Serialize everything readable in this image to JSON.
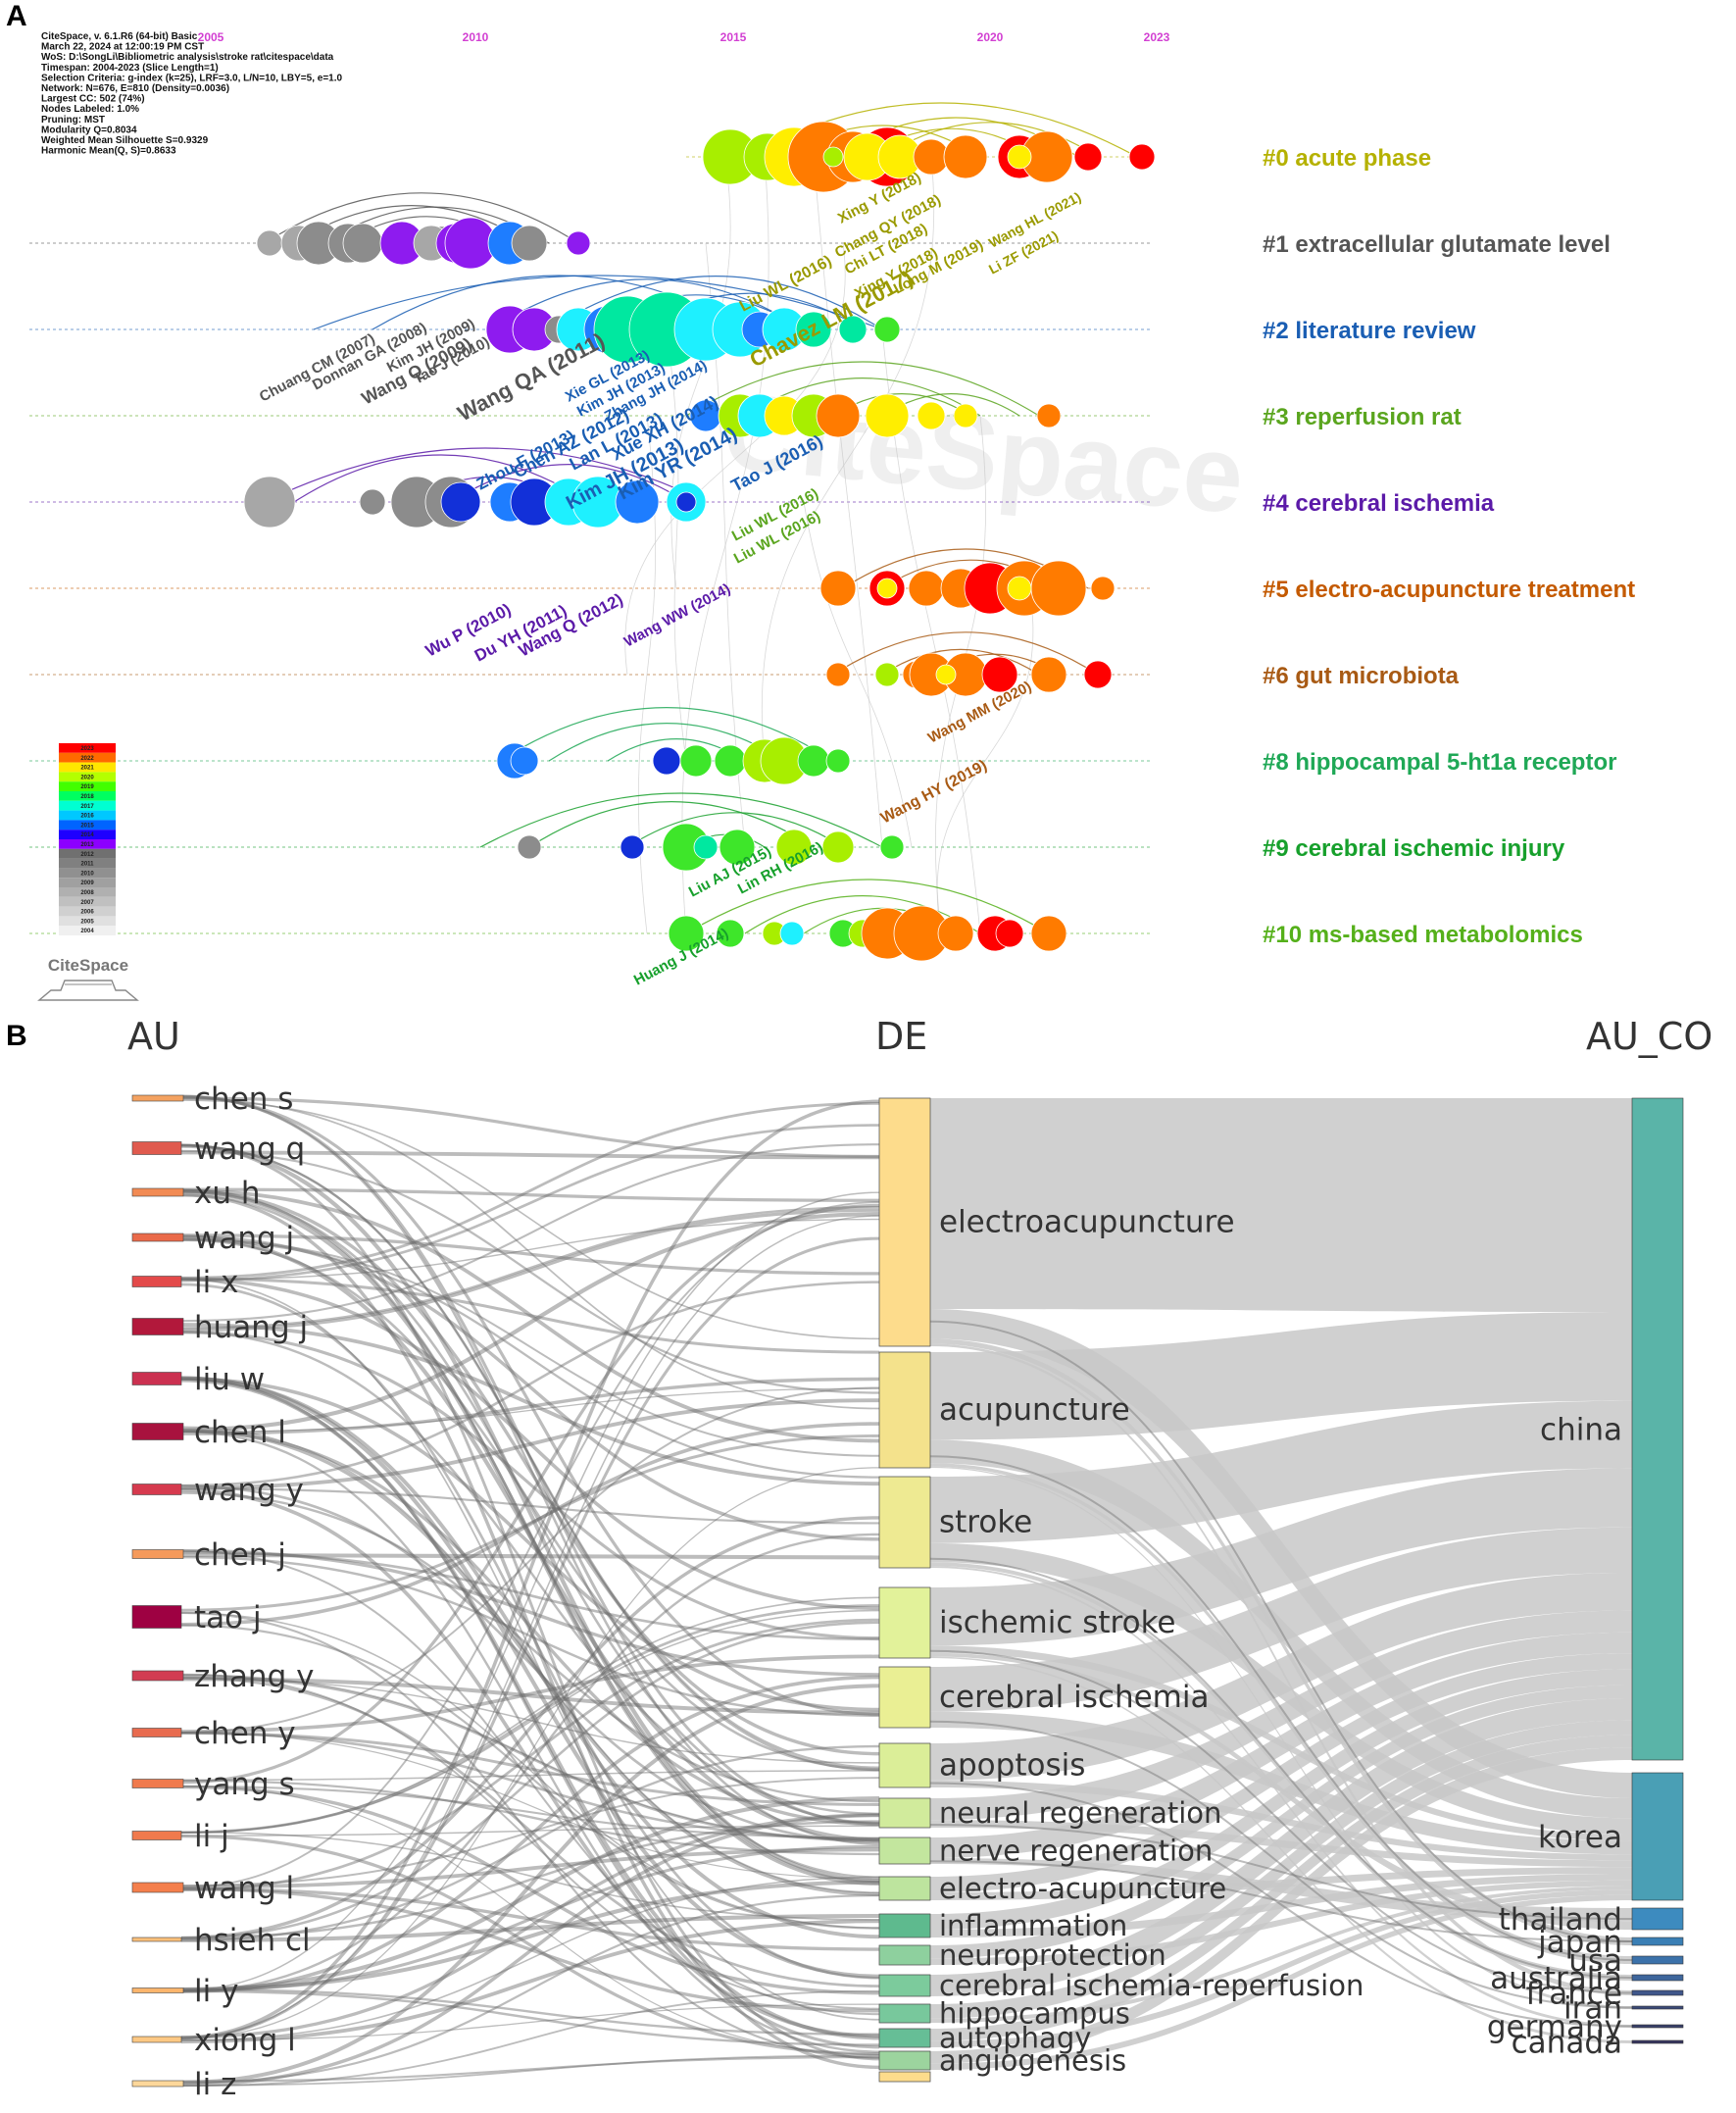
{
  "panels": {
    "a": "A",
    "b": "B"
  },
  "citespace": {
    "meta": [
      "CiteSpace, v. 6.1.R6 (64-bit) Basic",
      "March 22, 2024 at 12:00:19 PM CST",
      "WoS: D:\\SongLi\\Bibliometric analysis\\stroke rat\\citespace\\data",
      "Timespan: 2004-2023 (Slice Length=1)",
      "Selection Criteria: g-index (k=25), LRF=3.0, L/N=10, LBY=5, e=1.0",
      "Network: N=676, E=810 (Density=0.0036)",
      "Largest CC: 502 (74%)",
      "Nodes Labeled: 1.0%",
      "Pruning: MST",
      "Modularity Q=0.8034",
      "Weighted Mean Silhouette S=0.9329",
      "Harmonic Mean(Q, S)=0.8633"
    ],
    "years": [
      "2005",
      "2010",
      "2015",
      "2020",
      "2023"
    ],
    "watermark": "CiteSpace",
    "logo_text": "CiteSpace",
    "legend_years": [
      "2023",
      "2022",
      "2021",
      "2020",
      "2019",
      "2018",
      "2017",
      "2016",
      "2015",
      "2014",
      "2013",
      "2012",
      "2011",
      "2010",
      "2009",
      "2008",
      "2007",
      "2006",
      "2005",
      "2004"
    ],
    "legend_colors": [
      "#ff0000",
      "#ff6a00",
      "#ffe600",
      "#b4ff00",
      "#42ff00",
      "#00ff60",
      "#00ffd2",
      "#00c8ff",
      "#0064ff",
      "#1e00ff",
      "#8c00ff",
      "#707070",
      "#808080",
      "#909090",
      "#a0a0a0",
      "#b0b0b0",
      "#c0c0c0",
      "#d0d0d0",
      "#e0e0e0",
      "#f0f0f0"
    ],
    "clusters": [
      {
        "label": "#0 acute phase",
        "color": "#b5b100"
      },
      {
        "label": "#1 extracellular glutamate level",
        "color": "#555555"
      },
      {
        "label": "#2 literature review",
        "color": "#1a5eb3"
      },
      {
        "label": "#3 reperfusion rat",
        "color": "#5aa51e"
      },
      {
        "label": "#4 cerebral ischemia",
        "color": "#5b1aa8"
      },
      {
        "label": "#5 electro-acupuncture treatment",
        "color": "#c45a00"
      },
      {
        "label": "#6 gut microbiota",
        "color": "#a85a14"
      },
      {
        "label": "#8 hippocampal 5-ht1a receptor",
        "color": "#1fa856"
      },
      {
        "label": "#9 cerebral ischemic injury",
        "color": "#17a02c"
      },
      {
        "label": "#10 ms-based metabolomics",
        "color": "#55b01a"
      }
    ],
    "authors": [
      {
        "text": "Xing Y (2018)",
        "color": "#9a9a00"
      },
      {
        "text": "Chang QY (2018)",
        "color": "#9a9a00"
      },
      {
        "text": "Chi LT (2018)",
        "color": "#9a9a00"
      },
      {
        "text": "Xing Y (2018)",
        "color": "#9a9a00"
      },
      {
        "text": "Long M (2019)",
        "color": "#9a9a00"
      },
      {
        "text": "Liu WL (2016)",
        "color": "#9a9a00"
      },
      {
        "text": "Chavez LM (2017)",
        "color": "#9a9a00"
      },
      {
        "text": "Wang HL (2021)",
        "color": "#9a9a00"
      },
      {
        "text": "Li ZF (2021)",
        "color": "#9a9a00"
      },
      {
        "text": "Chuang CM (2007)",
        "color": "#555555"
      },
      {
        "text": "Donnan GA (2008)",
        "color": "#555555"
      },
      {
        "text": "Kim JH (2009)",
        "color": "#555555"
      },
      {
        "text": "Wang Q (2009)",
        "color": "#555555"
      },
      {
        "text": "Tao J (2010)",
        "color": "#555555"
      },
      {
        "text": "Wang QA (2011)",
        "color": "#555555"
      },
      {
        "text": "Xie GL (2013)",
        "color": "#1a5eb3"
      },
      {
        "text": "Kim JH (2013)",
        "color": "#1a5eb3"
      },
      {
        "text": "Zhang JH (2014)",
        "color": "#1a5eb3"
      },
      {
        "text": "Zhou F (2013)",
        "color": "#1a5eb3"
      },
      {
        "text": "Chen AZ (2012)",
        "color": "#1a5eb3"
      },
      {
        "text": "Lan L (2013)",
        "color": "#1a5eb3"
      },
      {
        "text": "Xue XH (2014)",
        "color": "#1a5eb3"
      },
      {
        "text": "Kim JH (2013)",
        "color": "#1a5eb3"
      },
      {
        "text": "Kim YR (2014)",
        "color": "#1a5eb3"
      },
      {
        "text": "Tao J (2016)",
        "color": "#1a5eb3"
      },
      {
        "text": "Liu WL (2016)",
        "color": "#5aa51e"
      },
      {
        "text": "Liu WL (2016)",
        "color": "#5aa51e"
      },
      {
        "text": "Wu P (2010)",
        "color": "#5b1aa8"
      },
      {
        "text": "Du YH (2011)",
        "color": "#5b1aa8"
      },
      {
        "text": "Wang Q (2012)",
        "color": "#5b1aa8"
      },
      {
        "text": "Wang WW (2014)",
        "color": "#5b1aa8"
      },
      {
        "text": "Wang MM (2020)",
        "color": "#a85a14"
      },
      {
        "text": "Wang HY (2019)",
        "color": "#a85a14"
      },
      {
        "text": "Liu AJ (2015)",
        "color": "#17a02c"
      },
      {
        "text": "Lin RH (2016)",
        "color": "#17a02c"
      },
      {
        "text": "Huang J (2014)",
        "color": "#17a02c"
      }
    ]
  },
  "sankey": {
    "headers": {
      "au": "AU",
      "de": "DE",
      "au_co": "AU_CO"
    },
    "authors": [
      {
        "label": "chen s",
        "color": "#f4a261"
      },
      {
        "label": "wang q",
        "color": "#e05a4e"
      },
      {
        "label": "xu h",
        "color": "#f28b54"
      },
      {
        "label": "wang j",
        "color": "#ea6a4a"
      },
      {
        "label": "li x",
        "color": "#e34a4a"
      },
      {
        "label": "huang j",
        "color": "#b2183b"
      },
      {
        "label": "liu w",
        "color": "#cb3050"
      },
      {
        "label": "chen l",
        "color": "#a8123e"
      },
      {
        "label": "wang y",
        "color": "#d63a4e"
      },
      {
        "label": "chen j",
        "color": "#f59a5b"
      },
      {
        "label": "tao j",
        "color": "#9e0142"
      },
      {
        "label": "zhang y",
        "color": "#d23c52"
      },
      {
        "label": "chen y",
        "color": "#e86b4f"
      },
      {
        "label": "yang s",
        "color": "#f07a4d"
      },
      {
        "label": "li j",
        "color": "#f07a4d"
      },
      {
        "label": "wang l",
        "color": "#f47f4c"
      },
      {
        "label": "hsieh cl",
        "color": "#fdc07a"
      },
      {
        "label": "li y",
        "color": "#fdb56c"
      },
      {
        "label": "xiong l",
        "color": "#fdc884"
      },
      {
        "label": "li z",
        "color": "#fdd79a"
      }
    ],
    "keywords": [
      {
        "label": "electroacupuncture",
        "color": "#fddc8c"
      },
      {
        "label": "acupuncture",
        "color": "#f4e28c"
      },
      {
        "label": "stroke",
        "color": "#eeea92"
      },
      {
        "label": "ischemic stroke",
        "color": "#e2f29a"
      },
      {
        "label": "cerebral ischemia",
        "color": "#eaef94"
      },
      {
        "label": "apoptosis",
        "color": "#dbee98"
      },
      {
        "label": "neural regeneration",
        "color": "#d1eb9c"
      },
      {
        "label": "nerve regeneration",
        "color": "#c3e69e"
      },
      {
        "label": "electro-acupuncture",
        "color": "#bde49e"
      },
      {
        "label": "inflammation",
        "color": "#5eba8e"
      },
      {
        "label": "neuroprotection",
        "color": "#8ed09e"
      },
      {
        "label": "cerebral ischemia-reperfusion",
        "color": "#7ccb9c"
      },
      {
        "label": "hippocampus",
        "color": "#78c89c"
      },
      {
        "label": "autophagy",
        "color": "#66be96"
      },
      {
        "label": "angiogenesis",
        "color": "#9cd49e"
      }
    ],
    "countries": [
      {
        "label": "china",
        "color": "#5ab4a8"
      },
      {
        "label": "korea",
        "color": "#4a9fb5"
      },
      {
        "label": "thailand",
        "color": "#3d8bbf"
      },
      {
        "label": "japan",
        "color": "#3a7fb5"
      },
      {
        "label": "usa",
        "color": "#3c72aa"
      },
      {
        "label": "australia",
        "color": "#3e669c"
      },
      {
        "label": "france",
        "color": "#3f568a"
      },
      {
        "label": "iran",
        "color": "#3b4a78"
      },
      {
        "label": "germany",
        "color": "#39406a"
      },
      {
        "label": "canada",
        "color": "#373660"
      }
    ]
  }
}
